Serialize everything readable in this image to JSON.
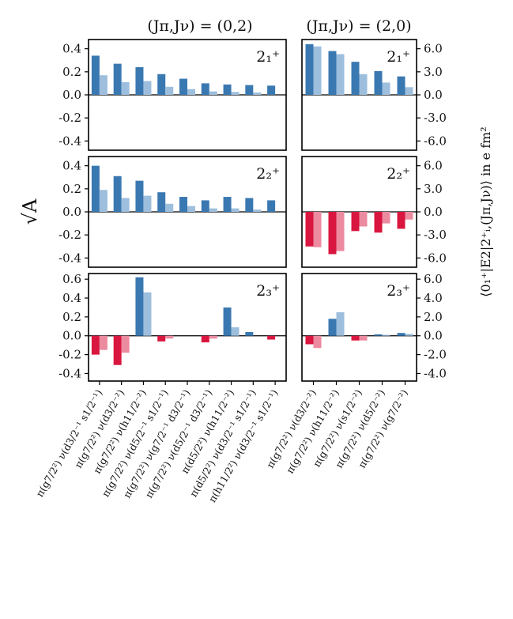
{
  "chart_data": {
    "type": "bar",
    "colors": {
      "positive_dark": "#3a78b1",
      "positive_light": "#9dbedd",
      "negative_dark": "#d9163f",
      "negative_light": "#ec8aa0"
    },
    "column_titles": [
      "(Jπ,Jν) = (0,2)",
      "(Jπ,Jν) = (2,0)"
    ],
    "ylabel_left": "√A",
    "ylabel_right": "⟨0₁⁺|E2|2⁺ᵢ,(Jπ,Jν)⟩ in e fm²",
    "left_categories": [
      "π(g7/2²) ν(d3/2⁻¹ s1/2⁻¹)",
      "π(g7/2²) ν(d3/2⁻²)",
      "π(g7/2²) ν(h11/2⁻²)",
      "π(g7/2²) ν(d5/2⁻¹ s1/2⁻¹)",
      "π(g7/2²) ν(g7/2⁻¹ d3/2⁻¹)",
      "π(g7/2²) ν(d5/2⁻¹ d3/2⁻¹)",
      "π(d5/2²) ν(h11/2⁻²)",
      "π(d5/2²) ν(d3/2⁻¹ s1/2⁻¹)",
      "π(h11/2²) ν(d3/2⁻¹ s1/2⁻¹)"
    ],
    "right_categories": [
      "π(g7/2²) ν(d3/2⁻²)",
      "π(g7/2²) ν(h11/2⁻²)",
      "π(g7/2²) ν(s1/2⁻²)",
      "π(g7/2²) ν(d5/2⁻²)",
      "π(g7/2²) ν(g7/2⁻²)"
    ],
    "rows": [
      {
        "state": "2₁⁺",
        "left": {
          "ylim": [
            -0.48,
            0.48
          ],
          "yticks": [
            0.4,
            0.2,
            0.0,
            -0.2,
            -0.4
          ],
          "ytick_labels": [
            "0.4",
            "0.2",
            "0.0",
            "-0.2",
            "-0.4"
          ],
          "values_dark": [
            0.34,
            0.27,
            0.24,
            0.18,
            0.14,
            0.1,
            0.09,
            0.085,
            0.08
          ],
          "values_light": [
            0.17,
            0.11,
            0.12,
            0.07,
            0.05,
            0.03,
            0.025,
            0.02,
            0.0
          ]
        },
        "right": {
          "ylim": [
            -7.2,
            7.2
          ],
          "yticks": [
            6.0,
            3.0,
            0.0,
            -3.0,
            -6.0
          ],
          "ytick_labels": [
            "6.0",
            "3.0",
            "0.0",
            "-3.0",
            "-6.0"
          ],
          "values_dark": [
            6.6,
            5.7,
            4.3,
            3.1,
            2.4
          ],
          "values_light": [
            6.3,
            5.3,
            2.7,
            1.6,
            1.0
          ]
        }
      },
      {
        "state": "2₂⁺",
        "left": {
          "ylim": [
            -0.48,
            0.48
          ],
          "yticks": [
            0.4,
            0.2,
            0.0,
            -0.2,
            -0.4
          ],
          "ytick_labels": [
            "0.4",
            "0.2",
            "0.0",
            "-0.2",
            "-0.4"
          ],
          "values_dark": [
            0.4,
            0.31,
            0.27,
            0.17,
            0.13,
            0.1,
            0.13,
            0.12,
            0.1
          ],
          "values_light": [
            0.19,
            0.12,
            0.14,
            0.07,
            0.05,
            0.03,
            0.03,
            0.02,
            0.0
          ]
        },
        "right": {
          "ylim": [
            -7.2,
            7.2
          ],
          "yticks": [
            6.0,
            3.0,
            0.0,
            -3.0,
            -6.0
          ],
          "ytick_labels": [
            "6.0",
            "3.0",
            "0.0",
            "-3.0",
            "-6.0"
          ],
          "values_dark": [
            -4.5,
            -5.5,
            -2.5,
            -2.7,
            -2.2
          ],
          "values_light": [
            -4.6,
            -5.1,
            -1.9,
            -1.5,
            -1.0
          ]
        }
      },
      {
        "state": "2₃⁺",
        "left": {
          "ylim": [
            -0.48,
            0.66
          ],
          "yticks": [
            0.6,
            0.4,
            0.2,
            0.0,
            -0.2,
            -0.4
          ],
          "ytick_labels": [
            "0.6",
            "0.4",
            "0.2",
            "0.0",
            "-0.2",
            "-0.4"
          ],
          "values_dark": [
            -0.2,
            -0.31,
            0.62,
            -0.06,
            0.0,
            -0.07,
            0.3,
            0.04,
            -0.04
          ],
          "values_light": [
            -0.15,
            -0.18,
            0.46,
            -0.03,
            0.0,
            -0.03,
            0.09,
            0.0,
            0.0
          ]
        },
        "right": {
          "ylim": [
            -4.8,
            6.6
          ],
          "yticks": [
            6.0,
            4.0,
            2.0,
            0.0,
            -2.0,
            -4.0
          ],
          "ytick_labels": [
            "6.0",
            "4.0",
            "2.0",
            "0.0",
            "-2.0",
            "-4.0"
          ],
          "values_dark": [
            -0.9,
            1.8,
            -0.5,
            0.15,
            0.3
          ],
          "values_light": [
            -1.3,
            2.5,
            -0.5,
            0.1,
            0.2
          ]
        }
      }
    ]
  }
}
